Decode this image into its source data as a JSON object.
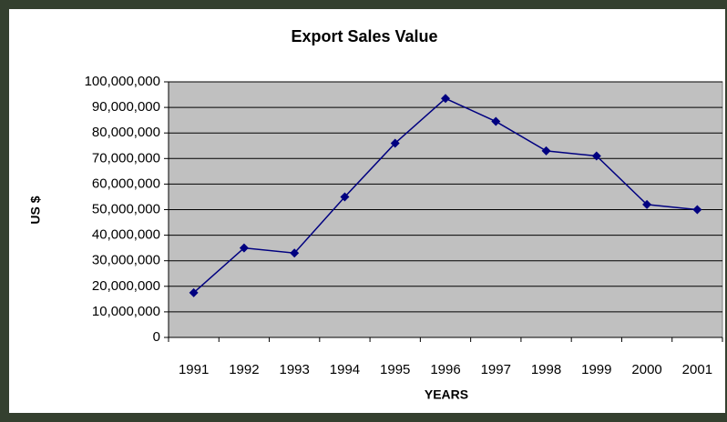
{
  "chart_data": {
    "type": "line",
    "title": "Export Sales Value",
    "x_label": "YEARS",
    "y_label": "US $",
    "categories": [
      "1991",
      "1992",
      "1993",
      "1994",
      "1995",
      "1996",
      "1997",
      "1998",
      "1999",
      "2000",
      "2001"
    ],
    "series": [
      {
        "name": "Export Sales Value",
        "color": "#000080",
        "values": [
          17500000,
          35000000,
          33000000,
          55000000,
          76000000,
          93500000,
          84500000,
          73000000,
          71000000,
          52000000,
          50000000
        ]
      }
    ],
    "ylim": [
      0,
      100000000
    ],
    "yticks": [
      0,
      {
        "value": 10000000,
        "label": "10,000,000"
      },
      {
        "value": 20000000,
        "label": "20,000,000"
      },
      {
        "value": 30000000,
        "label": "30,000,000"
      },
      {
        "value": 40000000,
        "label": "40,000,000"
      },
      {
        "value": 50000000,
        "label": "50,000,000"
      },
      {
        "value": 60000000,
        "label": "60,000,000"
      },
      {
        "value": 70000000,
        "label": "70,000,000"
      },
      {
        "value": 80000000,
        "label": "80,000,000"
      },
      {
        "value": 90000000,
        "label": "90,000,000"
      },
      {
        "value": 100000000,
        "label": "100,000,000"
      }
    ],
    "grid": true,
    "plot_background": "#c0c0c0"
  }
}
